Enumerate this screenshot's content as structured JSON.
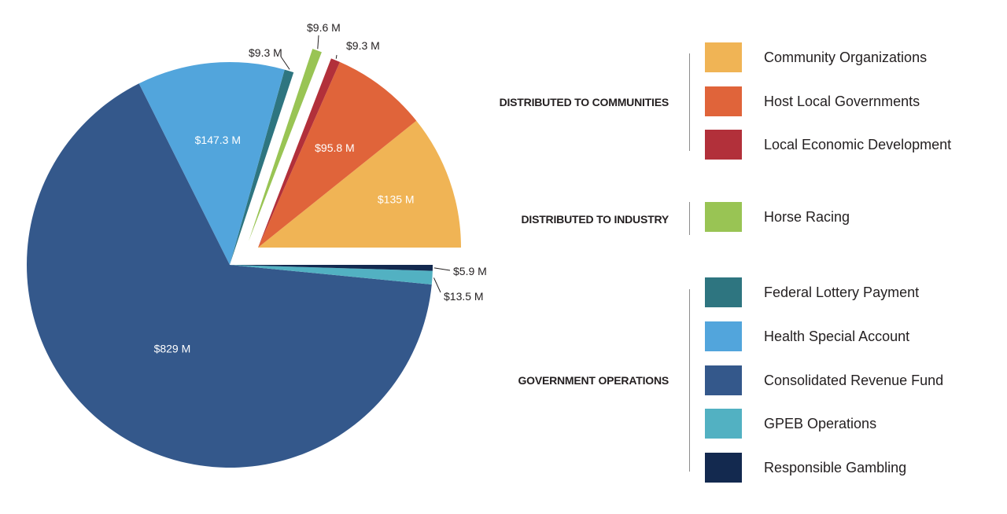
{
  "chart_data": {
    "type": "pie",
    "slices": [
      {
        "label": "Community Organizations",
        "value": 135,
        "display": "$135 M",
        "color": "#f0b455",
        "group": "DISTRIBUTED TO COMMUNITIES"
      },
      {
        "label": "Host Local Governments",
        "value": 95.8,
        "display": "$95.8 M",
        "color": "#e0643a",
        "group": "DISTRIBUTED TO COMMUNITIES"
      },
      {
        "label": "Local Economic Development",
        "value": 9.3,
        "display": "$9.3 M",
        "color": "#b2303a",
        "group": "DISTRIBUTED TO COMMUNITIES"
      },
      {
        "label": "Horse Racing",
        "value": 9.6,
        "display": "$9.6 M",
        "color": "#99c454",
        "group": "DISTRIBUTED TO INDUSTRY"
      },
      {
        "label": "Federal Lottery Payment",
        "value": 9.3,
        "display": "$9.3 M",
        "color": "#2e7580",
        "group": "GOVERNMENT OPERATIONS"
      },
      {
        "label": "Health Special Account",
        "value": 147.3,
        "display": "$147.3 M",
        "color": "#52a5dc",
        "group": "GOVERNMENT OPERATIONS"
      },
      {
        "label": "Consolidated Revenue Fund",
        "value": 829,
        "display": "$829 M",
        "color": "#34588b",
        "group": "GOVERNMENT OPERATIONS"
      },
      {
        "label": "GPEB Operations",
        "value": 13.5,
        "display": "$13.5 M",
        "color": "#52b1c2",
        "group": "GOVERNMENT OPERATIONS"
      },
      {
        "label": "Responsible Gambling",
        "value": 5.9,
        "display": "$5.9 M",
        "color": "#13294f",
        "group": "GOVERNMENT OPERATIONS"
      }
    ],
    "unit": "M"
  },
  "legend": {
    "groups": [
      {
        "title": "DISTRIBUTED TO COMMUNITIES",
        "items": [
          "Community Organizations",
          "Host Local Governments",
          "Local Economic Development"
        ]
      },
      {
        "title": "DISTRIBUTED TO INDUSTRY",
        "items": [
          "Horse Racing"
        ]
      },
      {
        "title": "GOVERNMENT OPERATIONS",
        "items": [
          "Federal Lottery Payment",
          "Health Special Account",
          "Consolidated Revenue Fund",
          "GPEB Operations",
          "Responsible Gambling"
        ]
      }
    ]
  }
}
